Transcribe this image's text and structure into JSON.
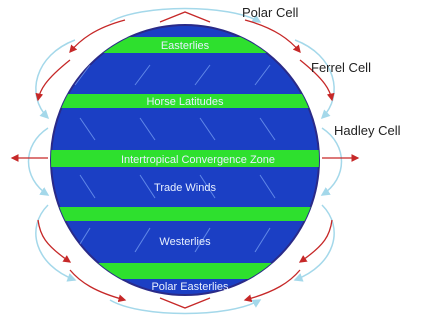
{
  "diagram": {
    "cell_labels": {
      "polar": "Polar Cell",
      "ferrel": "Ferrel Cell",
      "hadley": "Hadley Cell"
    },
    "bands": [
      {
        "id": "polar-easterlies-north",
        "label": "Easterlies"
      },
      {
        "id": "horse-latitudes",
        "label": "Horse Latitudes"
      },
      {
        "id": "itcz",
        "label": "Intertropical Convergence Zone"
      },
      {
        "id": "trade-winds",
        "label": "Trade Winds"
      },
      {
        "id": "westerlies",
        "label": "Westerlies"
      },
      {
        "id": "polar-easterlies-south",
        "label": "Polar Easterlies"
      }
    ],
    "colors": {
      "globe": "#1b3fc4",
      "globe_edge": "#2a2a88",
      "band": "#2ee02e",
      "band_text": "#e8f0ff",
      "cell_arrows": "#a4d8ea",
      "circulation_arrows": "#c62828",
      "wind_streaks": "#8fb8ff"
    }
  }
}
